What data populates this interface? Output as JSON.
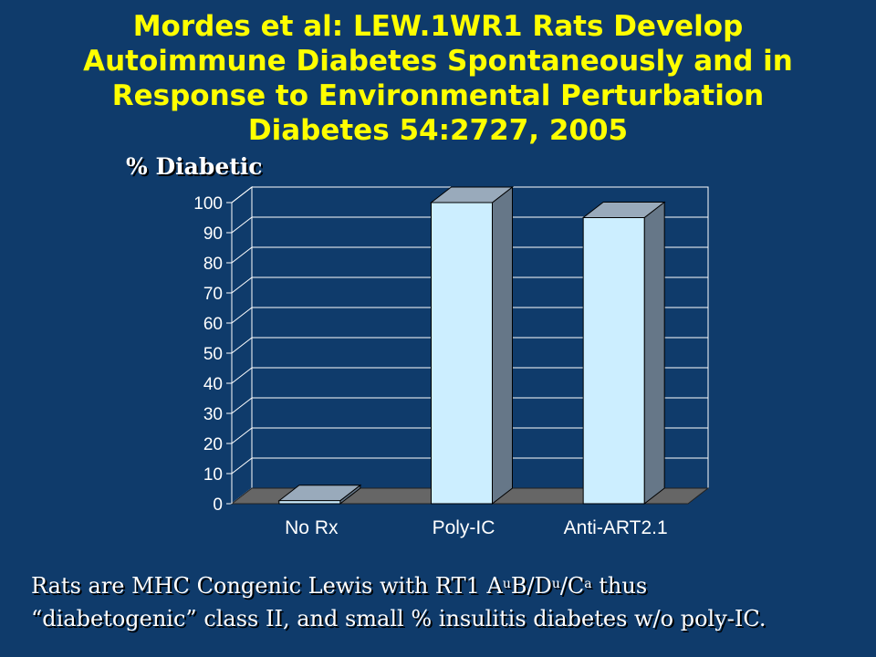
{
  "title_lines": [
    "Mordes et al: LEW.1WR1 Rats Develop",
    "Autoimmune Diabetes Spontaneously and in",
    "Response to Environmental Perturbation",
    "Diabetes 54:2727, 2005"
  ],
  "caption": {
    "line1_prefix": "Rats are MHC Congenic Lewis with RT1 A",
    "sup_a": "u",
    "mid_b": "B/D",
    "sup_b": "u",
    "mid_c": "/C",
    "sup_c": "a",
    "line1_suffix": " thus",
    "line2": "“diabetogenic” class II, and small % insulitis diabetes w/o poly-IC."
  },
  "chart_data": {
    "type": "bar",
    "ylabel": "% Diabetic",
    "xlabel": "",
    "categories": [
      "No Rx",
      "Poly-IC",
      "Anti-ART2.1"
    ],
    "values": [
      1,
      100,
      95
    ],
    "ylim": [
      0,
      100
    ],
    "yticks": [
      0,
      10,
      20,
      30,
      40,
      50,
      60,
      70,
      80,
      90,
      100
    ],
    "grid": true,
    "legend": "none",
    "colors": {
      "bar_front": "#cceeff",
      "bar_side": "#667788",
      "bar_top": "#99aabb",
      "wall": "#0f3b6b",
      "floor": "#666666",
      "axis_text": "#ffffff",
      "grid": "#ffffff"
    }
  }
}
